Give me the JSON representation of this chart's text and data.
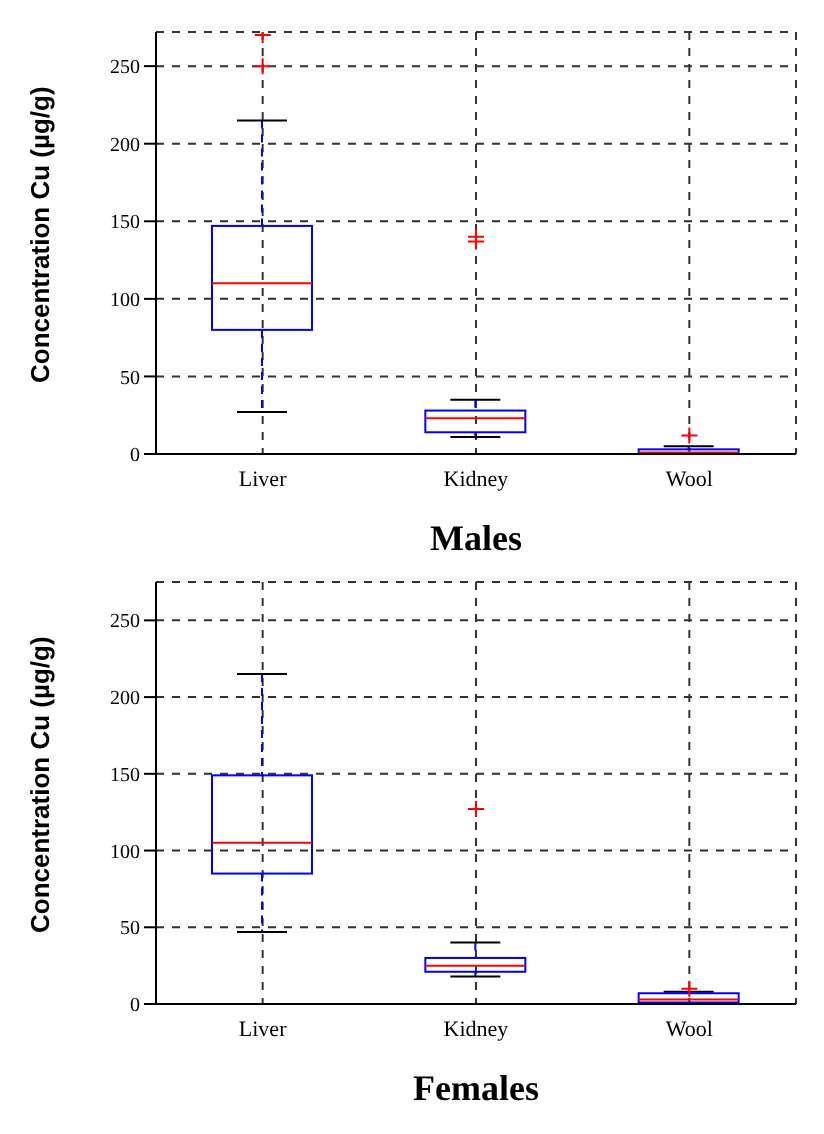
{
  "chart_data": [
    {
      "type": "box",
      "xlabel": "Males",
      "ylabel": "Concentration Cu (µg/g)",
      "categories": [
        "Liver",
        "Kidney",
        "Wool"
      ],
      "color": "#0000ff",
      "grid": true,
      "ylim": [
        0,
        272
      ],
      "yticks": [
        0,
        50,
        100,
        150,
        200,
        250
      ],
      "boxes": [
        {
          "low": 27,
          "q1": 80,
          "median": 110,
          "q3": 147,
          "high": 215,
          "outliers": [
            250,
            270
          ]
        },
        {
          "low": 11,
          "q1": 14,
          "median": 23,
          "q3": 28,
          "high": 35,
          "outliers": [
            137,
            140
          ]
        },
        {
          "low": 0,
          "q1": 0,
          "median": 1,
          "q3": 3,
          "high": 5,
          "outliers": [
            12
          ]
        }
      ]
    },
    {
      "type": "box",
      "xlabel": "Females",
      "ylabel": "Concentration Cu (µg/g)",
      "categories": [
        "Liver",
        "Kidney",
        "Wool"
      ],
      "color": "#0000ff",
      "grid": true,
      "ylim": [
        0,
        275
      ],
      "yticks": [
        0,
        50,
        100,
        150,
        200,
        250
      ],
      "boxes": [
        {
          "low": 47,
          "q1": 85,
          "median": 105,
          "q3": 149,
          "high": 215
        },
        {
          "low": 18,
          "q1": 21,
          "median": 25,
          "q3": 30,
          "high": 40,
          "outliers": [
            127
          ]
        },
        {
          "low": 0,
          "q1": 1,
          "median": 3,
          "q3": 7,
          "high": 8,
          "outliers": [
            10
          ]
        }
      ]
    }
  ]
}
